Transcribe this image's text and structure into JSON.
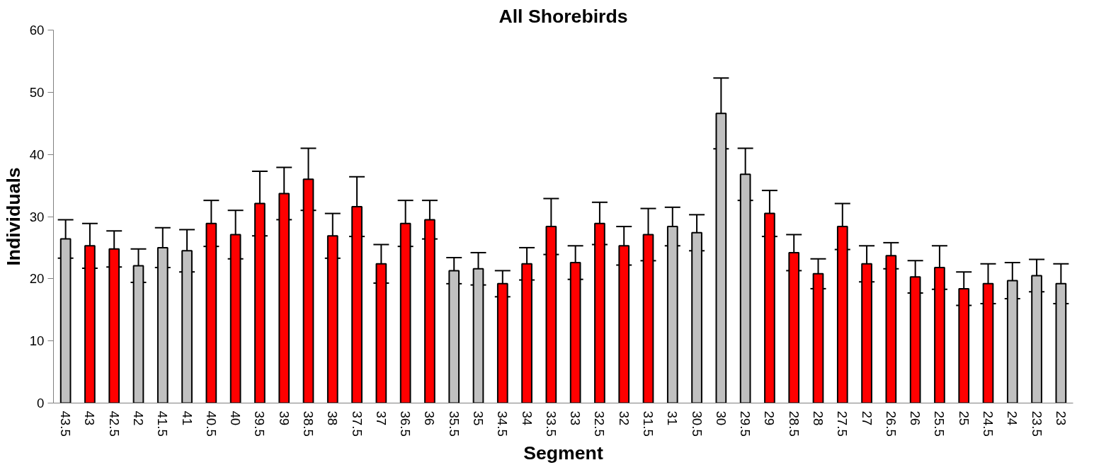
{
  "chart_data": {
    "type": "bar",
    "title": "All Shorebirds",
    "xlabel": "Segment",
    "ylabel": "Individuals",
    "categories": [
      "43.5",
      "43",
      "42.5",
      "42",
      "41.5",
      "41",
      "40.5",
      "40",
      "39.5",
      "39",
      "38.5",
      "38",
      "37.5",
      "37",
      "36.5",
      "36",
      "35.5",
      "35",
      "34.5",
      "34",
      "33.5",
      "33",
      "32.5",
      "32",
      "31.5",
      "31",
      "30.5",
      "30",
      "29.5",
      "29",
      "28.5",
      "28",
      "27.5",
      "27",
      "26.5",
      "26",
      "25.5",
      "25",
      "24.5",
      "24",
      "23.5",
      "23"
    ],
    "values": [
      26.4,
      25.3,
      24.8,
      22.1,
      25.0,
      24.5,
      28.9,
      27.1,
      32.1,
      33.7,
      36.0,
      26.9,
      31.6,
      22.4,
      28.9,
      29.5,
      21.3,
      21.6,
      19.2,
      22.4,
      28.4,
      22.6,
      28.9,
      25.3,
      27.1,
      28.4,
      27.4,
      46.6,
      36.8,
      30.5,
      24.2,
      20.8,
      28.4,
      22.4,
      23.7,
      20.3,
      21.8,
      18.4,
      19.2,
      19.7,
      20.5,
      19.2
    ],
    "errors": [
      3.1,
      3.6,
      2.9,
      2.7,
      3.2,
      3.4,
      3.7,
      3.9,
      5.2,
      4.2,
      5.0,
      3.6,
      4.8,
      3.1,
      3.7,
      3.1,
      2.1,
      2.6,
      2.1,
      2.6,
      4.5,
      2.7,
      3.4,
      3.1,
      4.2,
      3.1,
      2.9,
      5.7,
      4.2,
      3.7,
      2.9,
      2.4,
      3.7,
      2.9,
      2.1,
      2.6,
      3.5,
      2.7,
      3.2,
      2.9,
      2.6,
      3.2
    ],
    "colors": [
      "#c0c0c0",
      "#ff0000",
      "#ff0000",
      "#c0c0c0",
      "#c0c0c0",
      "#c0c0c0",
      "#ff0000",
      "#ff0000",
      "#ff0000",
      "#ff0000",
      "#ff0000",
      "#ff0000",
      "#ff0000",
      "#ff0000",
      "#ff0000",
      "#ff0000",
      "#c0c0c0",
      "#c0c0c0",
      "#ff0000",
      "#ff0000",
      "#ff0000",
      "#ff0000",
      "#ff0000",
      "#ff0000",
      "#ff0000",
      "#c0c0c0",
      "#c0c0c0",
      "#c0c0c0",
      "#c0c0c0",
      "#ff0000",
      "#ff0000",
      "#ff0000",
      "#ff0000",
      "#ff0000",
      "#ff0000",
      "#ff0000",
      "#ff0000",
      "#ff0000",
      "#ff0000",
      "#c0c0c0",
      "#c0c0c0",
      "#c0c0c0"
    ],
    "ylim": [
      0,
      60
    ],
    "yticks": [
      0,
      10,
      20,
      30,
      40,
      50,
      60
    ],
    "grid": false
  }
}
